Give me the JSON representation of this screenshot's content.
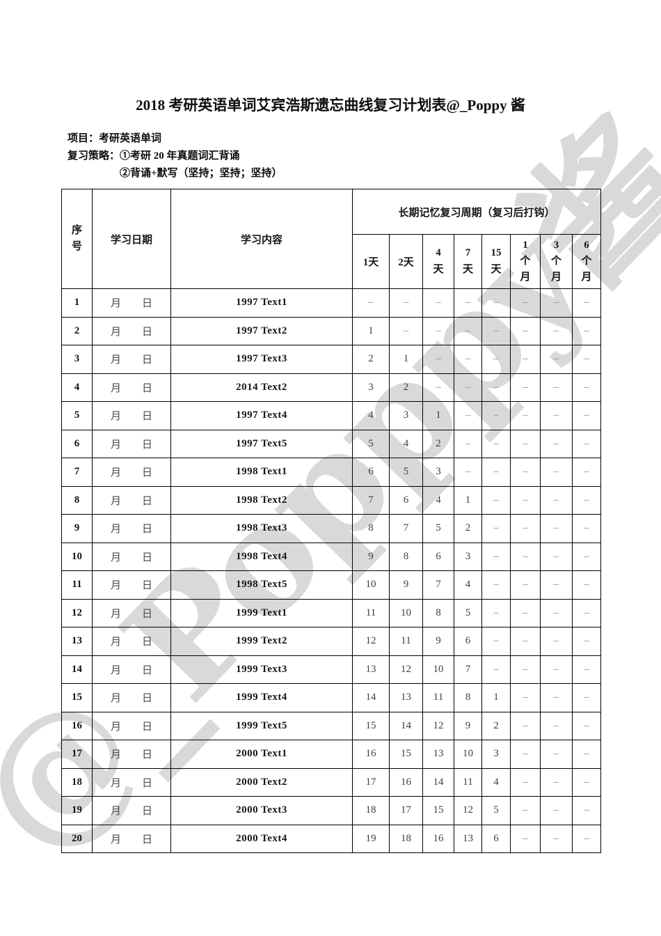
{
  "document": {
    "title": "2018 考研英语单词艾宾浩斯遗忘曲线复习计划表@_Poppy 酱",
    "info_lines": [
      "项目：考研英语单词",
      "复习策略：①考研 20 年真题词汇背诵",
      "②背诵+默写（坚持；坚持；坚持）"
    ],
    "watermark": {
      "text": "@_Popppy酱",
      "color": "#d9d9d9"
    }
  },
  "table": {
    "headers": {
      "index": "序号",
      "date": "学习日期",
      "content": "学习内容",
      "period_group": "长期记忆复习周期（复习后打钩）",
      "periods": [
        "1天",
        "2天",
        "4天",
        "7天",
        "15天",
        "1个月",
        "3个月",
        "6个月"
      ]
    },
    "date_placeholder": {
      "month": "月",
      "day": "日"
    },
    "empty_mark": "–",
    "rows": [
      {
        "no": "1",
        "content": "1997 Text1",
        "cells": [
          "–",
          "–",
          "–",
          "–",
          "–",
          "–",
          "–",
          "–"
        ]
      },
      {
        "no": "2",
        "content": "1997 Text2",
        "cells": [
          "1",
          "–",
          "–",
          "–",
          "–",
          "–",
          "–",
          "–"
        ]
      },
      {
        "no": "3",
        "content": "1997 Text3",
        "cells": [
          "2",
          "1",
          "–",
          "–",
          "–",
          "–",
          "–",
          "–"
        ]
      },
      {
        "no": "4",
        "content": "2014 Text2",
        "cells": [
          "3",
          "2",
          "–",
          "–",
          "–",
          "–",
          "–",
          "–"
        ]
      },
      {
        "no": "5",
        "content": "1997 Text4",
        "cells": [
          "4",
          "3",
          "1",
          "–",
          "–",
          "–",
          "–",
          "–"
        ]
      },
      {
        "no": "6",
        "content": "1997 Text5",
        "cells": [
          "5",
          "4",
          "2",
          "–",
          "–",
          "–",
          "–",
          "–"
        ]
      },
      {
        "no": "7",
        "content": "1998 Text1",
        "cells": [
          "6",
          "5",
          "3",
          "–",
          "–",
          "–",
          "–",
          "–"
        ]
      },
      {
        "no": "8",
        "content": "1998 Text2",
        "cells": [
          "7",
          "6",
          "4",
          "1",
          "–",
          "–",
          "–",
          "–"
        ]
      },
      {
        "no": "9",
        "content": "1998 Text3",
        "cells": [
          "8",
          "7",
          "5",
          "2",
          "–",
          "–",
          "–",
          "–"
        ]
      },
      {
        "no": "10",
        "content": "1998 Text4",
        "cells": [
          "9",
          "8",
          "6",
          "3",
          "–",
          "–",
          "–",
          "–"
        ]
      },
      {
        "no": "11",
        "content": "1998 Text5",
        "cells": [
          "10",
          "9",
          "7",
          "4",
          "–",
          "–",
          "–",
          "–"
        ]
      },
      {
        "no": "12",
        "content": "1999 Text1",
        "cells": [
          "11",
          "10",
          "8",
          "5",
          "–",
          "–",
          "–",
          "–"
        ]
      },
      {
        "no": "13",
        "content": "1999 Text2",
        "cells": [
          "12",
          "11",
          "9",
          "6",
          "–",
          "–",
          "–",
          "–"
        ]
      },
      {
        "no": "14",
        "content": "1999 Text3",
        "cells": [
          "13",
          "12",
          "10",
          "7",
          "–",
          "–",
          "–",
          "–"
        ]
      },
      {
        "no": "15",
        "content": "1999 Text4",
        "cells": [
          "14",
          "13",
          "11",
          "8",
          "1",
          "–",
          "–",
          "–"
        ]
      },
      {
        "no": "16",
        "content": "1999 Text5",
        "cells": [
          "15",
          "14",
          "12",
          "9",
          "2",
          "–",
          "–",
          "–"
        ]
      },
      {
        "no": "17",
        "content": "2000 Text1",
        "cells": [
          "16",
          "15",
          "13",
          "10",
          "3",
          "–",
          "–",
          "–"
        ]
      },
      {
        "no": "18",
        "content": "2000 Text2",
        "cells": [
          "17",
          "16",
          "14",
          "11",
          "4",
          "–",
          "–",
          "–"
        ]
      },
      {
        "no": "19",
        "content": "2000 Text3",
        "cells": [
          "18",
          "17",
          "15",
          "12",
          "5",
          "–",
          "–",
          "–"
        ]
      },
      {
        "no": "20",
        "content": "2000 Text4",
        "cells": [
          "19",
          "18",
          "16",
          "13",
          "6",
          "–",
          "–",
          "–"
        ]
      }
    ]
  }
}
